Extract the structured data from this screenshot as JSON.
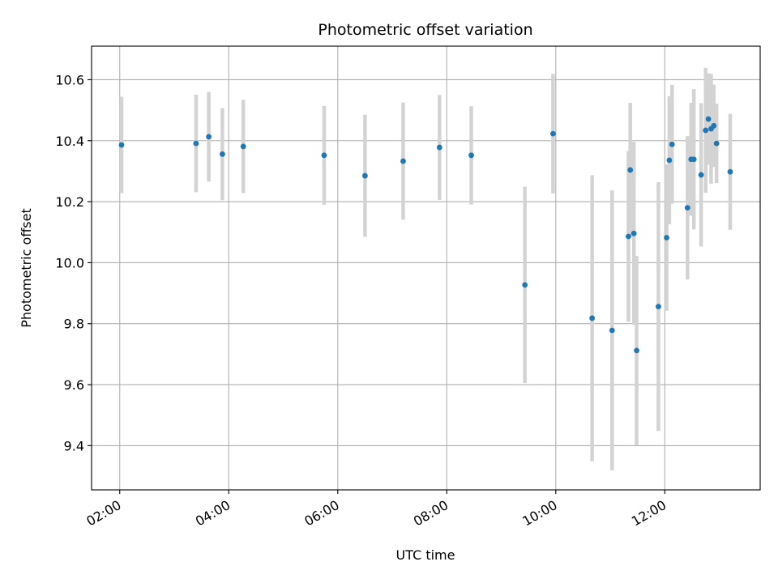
{
  "chart_data": {
    "type": "scatter",
    "title": "Photometric offset variation",
    "xlabel": "UTC time",
    "ylabel": "Photometric offset",
    "x_unit": "UTC hour",
    "xlim": [
      "01:29",
      "13:45"
    ],
    "ylim": [
      9.255,
      10.71
    ],
    "grid": true,
    "x_ticks": [
      "02:00",
      "04:00",
      "06:00",
      "08:00",
      "10:00",
      "12:00"
    ],
    "y_ticks": [
      "9.4",
      "9.6",
      "9.8",
      "10.0",
      "10.2",
      "10.4",
      "10.6"
    ],
    "colors": {
      "points": "#1f77b4",
      "error_bars": "#d3d3d3",
      "grid": "#b0b0b0"
    },
    "points": [
      {
        "x": "02:02",
        "y": 10.386,
        "err": 0.158
      },
      {
        "x": "03:24",
        "y": 10.391,
        "err": 0.16
      },
      {
        "x": "03:38",
        "y": 10.413,
        "err": 0.147
      },
      {
        "x": "03:53",
        "y": 10.356,
        "err": 0.151
      },
      {
        "x": "04:16",
        "y": 10.381,
        "err": 0.153
      },
      {
        "x": "05:45",
        "y": 10.352,
        "err": 0.162
      },
      {
        "x": "06:30",
        "y": 10.285,
        "err": 0.2
      },
      {
        "x": "07:12",
        "y": 10.333,
        "err": 0.192
      },
      {
        "x": "07:52",
        "y": 10.378,
        "err": 0.172
      },
      {
        "x": "08:27",
        "y": 10.352,
        "err": 0.161
      },
      {
        "x": "09:26",
        "y": 9.927,
        "err": 0.322
      },
      {
        "x": "09:57",
        "y": 10.423,
        "err": 0.196
      },
      {
        "x": "10:40",
        "y": 9.818,
        "err": 0.469
      },
      {
        "x": "11:02",
        "y": 9.778,
        "err": 0.459
      },
      {
        "x": "11:20",
        "y": 10.086,
        "err": 0.28
      },
      {
        "x": "11:22",
        "y": 10.304,
        "err": 0.22
      },
      {
        "x": "11:26",
        "y": 10.096,
        "err": 0.3
      },
      {
        "x": "11:29",
        "y": 9.712,
        "err": 0.31
      },
      {
        "x": "11:53",
        "y": 9.856,
        "err": 0.408
      },
      {
        "x": "12:02",
        "y": 10.082,
        "err": 0.24
      },
      {
        "x": "12:05",
        "y": 10.336,
        "err": 0.21
      },
      {
        "x": "12:08",
        "y": 10.388,
        "err": 0.195
      },
      {
        "x": "12:25",
        "y": 10.18,
        "err": 0.235
      },
      {
        "x": "12:29",
        "y": 10.339,
        "err": 0.185
      },
      {
        "x": "12:32",
        "y": 10.339,
        "err": 0.23
      },
      {
        "x": "12:40",
        "y": 10.288,
        "err": 0.235
      },
      {
        "x": "12:45",
        "y": 10.434,
        "err": 0.205
      },
      {
        "x": "12:48",
        "y": 10.471,
        "err": 0.15
      },
      {
        "x": "12:51",
        "y": 10.439,
        "err": 0.18
      },
      {
        "x": "12:54",
        "y": 10.449,
        "err": 0.135
      },
      {
        "x": "12:57",
        "y": 10.391,
        "err": 0.13
      },
      {
        "x": "13:12",
        "y": 10.298,
        "err": 0.19
      }
    ]
  }
}
